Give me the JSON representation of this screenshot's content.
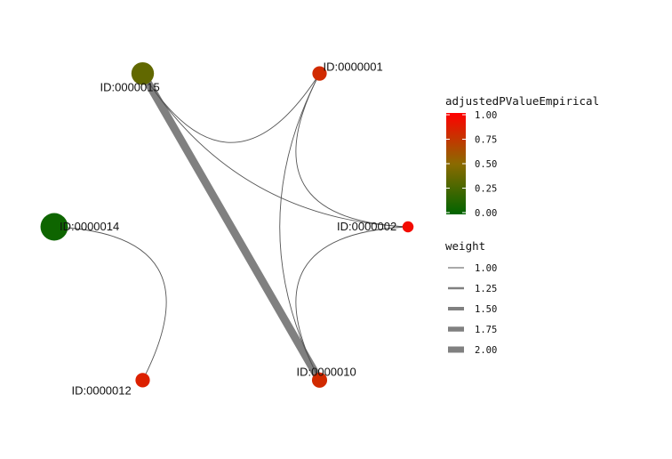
{
  "chart_data": {
    "type": "network",
    "nodes": [
      {
        "id": "n15",
        "label": "ID:0000015",
        "adjusted_p": 0.35,
        "size": 2.0
      },
      {
        "id": "n1",
        "label": "ID:0000001",
        "adjusted_p": 0.8,
        "size": 1.0
      },
      {
        "id": "n2",
        "label": "ID:0000002",
        "adjusted_p": 0.95,
        "size": 0.6
      },
      {
        "id": "n14",
        "label": "ID:0000014",
        "adjusted_p": 0.05,
        "size": 2.6
      },
      {
        "id": "n10",
        "label": "ID:0000010",
        "adjusted_p": 0.8,
        "size": 1.1
      },
      {
        "id": "n12",
        "label": "ID:0000012",
        "adjusted_p": 0.85,
        "size": 1.0
      }
    ],
    "edges": [
      {
        "source": "n15",
        "target": "n10",
        "weight": 2.0
      },
      {
        "source": "n15",
        "target": "n1",
        "weight": 1.0
      },
      {
        "source": "n15",
        "target": "n2",
        "weight": 1.0
      },
      {
        "source": "n1",
        "target": "n2",
        "weight": 1.0
      },
      {
        "source": "n1",
        "target": "n10",
        "weight": 1.0
      },
      {
        "source": "n2",
        "target": "n10",
        "weight": 1.0
      },
      {
        "source": "n14",
        "target": "n12",
        "weight": 1.0
      }
    ],
    "legend": {
      "color": {
        "title": "adjustedPValueEmpirical",
        "ticks": [
          "1.00",
          "0.75",
          "0.50",
          "0.25",
          "0.00"
        ],
        "low_color": "#006400",
        "mid_color": "#8B6A00",
        "high_color": "#FF0000"
      },
      "weight": {
        "title": "weight",
        "ticks": [
          "1.00",
          "1.25",
          "1.50",
          "1.75",
          "2.00"
        ],
        "values": [
          1.0,
          1.25,
          1.5,
          1.75,
          2.0
        ],
        "edge_color": "#808080"
      }
    }
  }
}
